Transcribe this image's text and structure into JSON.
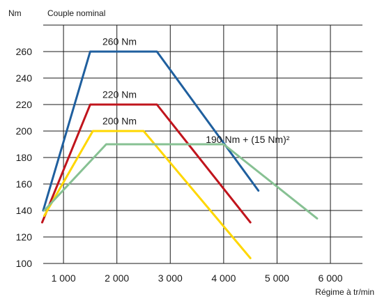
{
  "chart_data": {
    "type": "line",
    "ylabel_unit": "Nm",
    "title": "Couple nominal",
    "xlabel": "Régime à tr/min",
    "xlim": [
      620,
      6600
    ],
    "ylim": [
      100,
      280
    ],
    "x_ticks": [
      1000,
      2000,
      3000,
      4000,
      5000,
      6000
    ],
    "x_tick_labels": [
      "1 000",
      "2 000",
      "3 000",
      "4 000",
      "5 000",
      "6 000"
    ],
    "y_ticks": [
      100,
      120,
      140,
      160,
      180,
      200,
      220,
      240,
      260
    ],
    "y_tick_labels": [
      "100",
      "120",
      "140",
      "160",
      "180",
      "200",
      "220",
      "240",
      "260"
    ],
    "grid": "both",
    "annotations": [
      {
        "text": "260 Nm",
        "x": 2050,
        "y": 265
      },
      {
        "text": "220 Nm",
        "x": 2050,
        "y": 225
      },
      {
        "text": "200 Nm",
        "x": 2050,
        "y": 205
      },
      {
        "text": "190 Nm + (15 Nm)²",
        "x": 4450,
        "y": 191
      }
    ],
    "series": [
      {
        "color": "#1f5f9e",
        "x": [
          620,
          1500,
          2750,
          4650
        ],
        "y": [
          140,
          260,
          260,
          155
        ]
      },
      {
        "color": "#c0141c",
        "x": [
          600,
          1500,
          2750,
          4500
        ],
        "y": [
          131,
          220,
          220,
          131
        ]
      },
      {
        "color": "#ffd700",
        "x": [
          640,
          1550,
          2500,
          4500
        ],
        "y": [
          136,
          200,
          200,
          104
        ]
      },
      {
        "color": "#87c193",
        "x": [
          640,
          1800,
          4000,
          5750
        ],
        "y": [
          140,
          190,
          190,
          134
        ]
      }
    ]
  }
}
